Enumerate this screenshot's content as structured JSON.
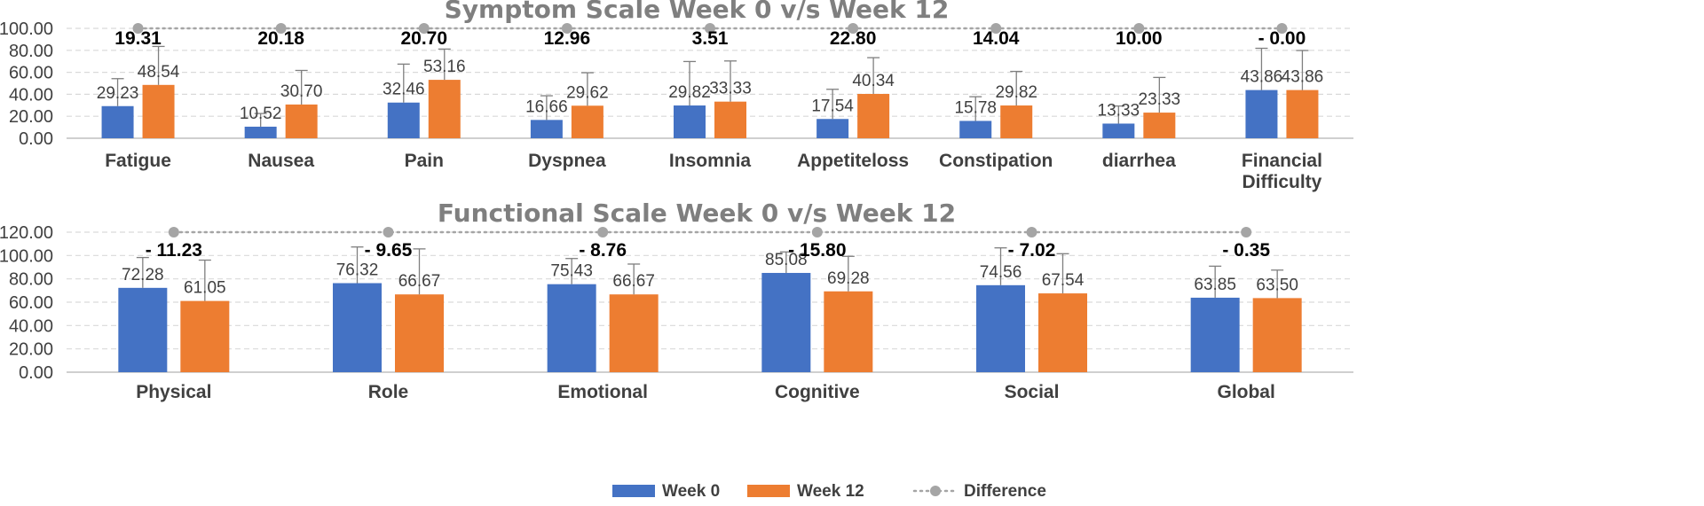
{
  "chart_data": [
    {
      "type": "bar",
      "title": "Symptom Scale Week 0 v/s Week 12",
      "categories": [
        "Fatigue",
        "Nausea",
        "Pain",
        "Dyspnea",
        "Insomnia",
        "Appetiteloss",
        "Constipation",
        "diarrhea",
        "Financial Difficulty"
      ],
      "ylim": [
        0,
        100
      ],
      "yticks": [
        "0.00",
        "20.00",
        "40.00",
        "60.00",
        "80.00",
        "100.00"
      ],
      "series": [
        {
          "name": "Week 0",
          "color": "#4472c4",
          "values": [
            29.23,
            10.52,
            32.46,
            16.66,
            29.82,
            17.54,
            15.78,
            13.33,
            43.86
          ],
          "labels": [
            "29.23",
            "10.52",
            "32.46",
            "16.66",
            "29.82",
            "17.54",
            "15.78",
            "13.33",
            "43.86"
          ],
          "error": [
            25,
            12,
            35,
            22,
            40,
            27,
            22,
            16,
            38
          ]
        },
        {
          "name": "Week 12",
          "color": "#ed7d31",
          "values": [
            48.54,
            30.7,
            53.16,
            29.62,
            33.33,
            40.34,
            29.82,
            23.33,
            43.86
          ],
          "labels": [
            "48.54",
            "30.70",
            "53.16",
            "29.62",
            "33.33",
            "40.34",
            "29.82",
            "23.33",
            "43.86"
          ],
          "error": [
            35,
            31,
            28,
            30,
            37,
            33,
            31,
            32,
            36
          ]
        }
      ],
      "difference": {
        "name": "Difference",
        "color": "#a5a5a5",
        "values": [
          100,
          100,
          100,
          100,
          100,
          100,
          100,
          100,
          100
        ],
        "labels": [
          "19.31",
          "20.18",
          "20.70",
          "12.96",
          "3.51",
          "22.80",
          "14.04",
          "10.00",
          "- 0.00"
        ]
      }
    },
    {
      "type": "bar",
      "title": "Functional Scale Week 0 v/s Week 12",
      "categories": [
        "Physical",
        "Role",
        "Emotional",
        "Cognitive",
        "Social",
        "Global"
      ],
      "ylim": [
        0,
        120
      ],
      "yticks": [
        "0.00",
        "20.00",
        "40.00",
        "60.00",
        "80.00",
        "100.00",
        "120.00"
      ],
      "series": [
        {
          "name": "Week 0",
          "color": "#4472c4",
          "values": [
            72.28,
            76.32,
            75.43,
            85.08,
            74.56,
            63.85
          ],
          "labels": [
            "72.28",
            "76.32",
            "75.43",
            "85.08",
            "74.56",
            "63.85"
          ],
          "error": [
            26,
            31,
            22,
            18,
            32,
            27
          ]
        },
        {
          "name": "Week 12",
          "color": "#ed7d31",
          "values": [
            61.05,
            66.67,
            66.67,
            69.28,
            67.54,
            63.5
          ],
          "labels": [
            "61.05",
            "66.67",
            "66.67",
            "69.28",
            "67.54",
            "63.50"
          ],
          "error": [
            35,
            39,
            26,
            30,
            34,
            24
          ]
        }
      ],
      "difference": {
        "name": "Difference",
        "color": "#a5a5a5",
        "values": [
          120,
          120,
          120,
          120,
          120,
          120
        ],
        "labels": [
          "- 11.23",
          "- 9.65",
          "- 8.76",
          "- 15.80",
          "- 7.02",
          "- 0.35"
        ]
      }
    }
  ],
  "legend": {
    "position": "bottom-center",
    "items": [
      {
        "label": "Week 0",
        "color": "#4472c4",
        "kind": "bar"
      },
      {
        "label": "Week 12",
        "color": "#ed7d31",
        "kind": "bar"
      },
      {
        "label": "Difference",
        "color": "#a5a5a5",
        "kind": "dotted-line"
      }
    ]
  }
}
